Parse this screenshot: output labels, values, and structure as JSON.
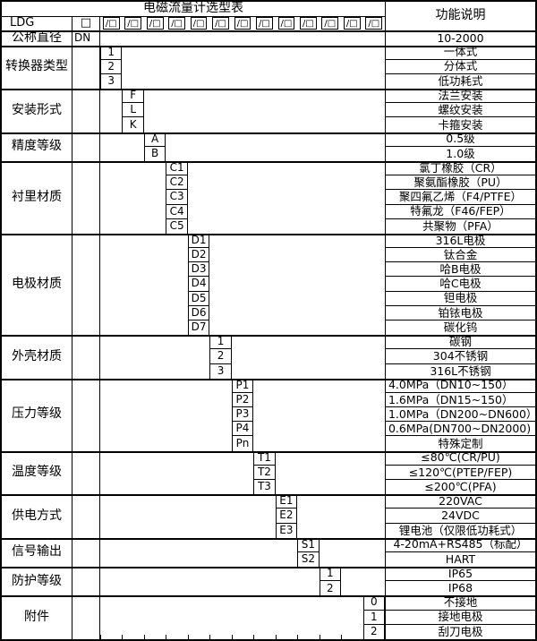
{
  "title": "电磁流量计选型表",
  "function_header": "功能说明",
  "model": {
    "prefix": "LDG",
    "box": "□",
    "slot": "/□",
    "slot_count": 13
  },
  "sections": [
    {
      "key": "nominal-diameter",
      "label": "公称直径",
      "code_col": 0,
      "rows": [
        {
          "code": "DN",
          "desc": "10-2000"
        }
      ]
    },
    {
      "key": "converter-type",
      "label": "转换器类型",
      "code_col": 1,
      "rows": [
        {
          "code": "1",
          "desc": "一体式"
        },
        {
          "code": "2",
          "desc": "分体式"
        },
        {
          "code": "3",
          "desc": "低功耗式"
        }
      ]
    },
    {
      "key": "installation-type",
      "label": "安装形式",
      "code_col": 2,
      "rows": [
        {
          "code": "F",
          "desc": "法兰安装"
        },
        {
          "code": "L",
          "desc": "螺纹安装"
        },
        {
          "code": "K",
          "desc": "卡箍安装"
        }
      ]
    },
    {
      "key": "accuracy-class",
      "label": "精度等级",
      "code_col": 3,
      "rows": [
        {
          "code": "A",
          "desc": "0.5级"
        },
        {
          "code": "B",
          "desc": "1.0级"
        }
      ]
    },
    {
      "key": "lining-material",
      "label": "衬里材质",
      "code_col": 4,
      "rows": [
        {
          "code": "C1",
          "desc": "氯丁橡胶（CR）"
        },
        {
          "code": "C2",
          "desc": "聚氨酯橡胶（PU）"
        },
        {
          "code": "C3",
          "desc": "聚四氟乙烯（F4/PTFE）"
        },
        {
          "code": "C4",
          "desc": "特氟龙（F46/FEP）"
        },
        {
          "code": "C5",
          "desc": "共聚物（PFA）"
        }
      ]
    },
    {
      "key": "electrode-material",
      "label": "电极材质",
      "code_col": 5,
      "rows": [
        {
          "code": "D1",
          "desc": "316L电极"
        },
        {
          "code": "D2",
          "desc": "钛合金"
        },
        {
          "code": "D3",
          "desc": "哈B电极"
        },
        {
          "code": "D4",
          "desc": "哈C电极"
        },
        {
          "code": "D5",
          "desc": "钽电极"
        },
        {
          "code": "D6",
          "desc": "铂铱电极"
        },
        {
          "code": "D7",
          "desc": "碳化钨"
        }
      ]
    },
    {
      "key": "housing-material",
      "label": "外壳材质",
      "code_col": 6,
      "rows": [
        {
          "code": "1",
          "desc": "碳钢"
        },
        {
          "code": "2",
          "desc": "304不锈钢"
        },
        {
          "code": "3",
          "desc": "316L不锈钢"
        }
      ]
    },
    {
      "key": "pressure-rating",
      "label": "压力等级",
      "code_col": 7,
      "rows": [
        {
          "code": "P1",
          "desc": "4.0MPa（DN10~150）",
          "align": "left"
        },
        {
          "code": "P2",
          "desc": "1.6MPa（DN15~150）",
          "align": "left"
        },
        {
          "code": "P3",
          "desc": "1.0MPa（DN200~DN600）",
          "align": "left"
        },
        {
          "code": "P4",
          "desc": "0.6MPa(DN700~DN2000)",
          "align": "left"
        },
        {
          "code": "Pn",
          "desc": "特殊定制"
        }
      ]
    },
    {
      "key": "temperature-rating",
      "label": "温度等级",
      "code_col": 8,
      "rows": [
        {
          "code": "T1",
          "desc": "≤80℃(CR/PU)"
        },
        {
          "code": "T2",
          "desc": "≤120℃(PTEP/FEP)"
        },
        {
          "code": "T3",
          "desc": "≤200℃(PFA)"
        }
      ]
    },
    {
      "key": "power-supply",
      "label": "供电方式",
      "code_col": 9,
      "rows": [
        {
          "code": "E1",
          "desc": "220VAC"
        },
        {
          "code": "E2",
          "desc": "24VDC"
        },
        {
          "code": "E3",
          "desc": "锂电池（仅限低功耗式）"
        }
      ]
    },
    {
      "key": "signal-output",
      "label": "信号输出",
      "code_col": 10,
      "rows": [
        {
          "code": "S1",
          "desc": "4-20mA+RS485（标配）"
        },
        {
          "code": "S2",
          "desc": "HART"
        }
      ]
    },
    {
      "key": "protection-rating",
      "label": "防护等级",
      "code_col": 11,
      "rows": [
        {
          "code": "1",
          "desc": "IP65"
        },
        {
          "code": "2",
          "desc": "IP68"
        }
      ]
    },
    {
      "key": "accessories",
      "label": "附件",
      "code_col": 13,
      "rows": [
        {
          "code": "0",
          "desc": "不接地"
        },
        {
          "code": "1",
          "desc": "接地电极"
        },
        {
          "code": "2",
          "desc": "刮刀电极"
        }
      ]
    }
  ],
  "colors": {
    "border": "#000000",
    "background": "#ffffff",
    "text": "#000000"
  }
}
